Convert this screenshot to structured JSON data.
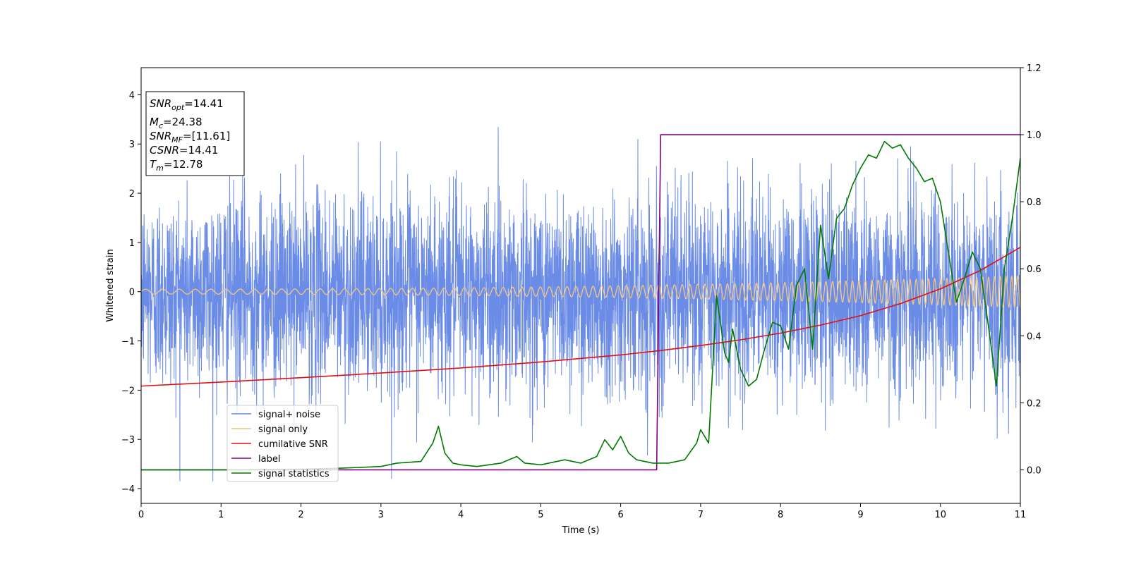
{
  "chart_data": {
    "type": "line",
    "xlabel": "Time (s)",
    "ylabel": "Whitened strain",
    "xlim": [
      0,
      11
    ],
    "ylim": [
      -4.3,
      4.55
    ],
    "ylim_right": [
      -0.1,
      1.2
    ],
    "x_ticks": [
      "0",
      "1",
      "2",
      "3",
      "4",
      "5",
      "6",
      "7",
      "8",
      "9",
      "10",
      "11"
    ],
    "y_ticks_left": [
      "4",
      "3",
      "2",
      "1",
      "0",
      "−1",
      "−2",
      "−3",
      "−4"
    ],
    "y_ticks_right": [
      "1.2",
      "1.0",
      "0.8",
      "0.6",
      "0.4",
      "0.2",
      "0.0"
    ],
    "grid": false,
    "legend_position": "lower-left",
    "annotation_box": {
      "lines": [
        {
          "sym": "SNR",
          "sub": "opt",
          "val": "=14.41"
        },
        {
          "sym": "M",
          "sub": "c",
          "val": "=24.38"
        },
        {
          "sym": "SNR",
          "sub": "MF",
          "val": "=[11.61]"
        },
        {
          "sym": "CSNR",
          "sub": "",
          "val": "=14.41"
        },
        {
          "sym": "T",
          "sub": "m",
          "val": "=12.78"
        }
      ]
    },
    "series": [
      {
        "name": "signal+ noise",
        "axis": "left",
        "color": "#6a8be6",
        "description_values": {
          "noise_sigma": 1.0,
          "range": [
            -3.85,
            4.17
          ]
        }
      },
      {
        "name": "signal only",
        "axis": "left",
        "color": "#f5c77e",
        "chirp": {
          "amplitude_start": 0.05,
          "amplitude_end": 0.32,
          "freq_start": 4.5,
          "freq_end": 14
        }
      },
      {
        "name": "cumilative SNR",
        "axis": "right",
        "color": "#e01010",
        "x": [
          0,
          1,
          2,
          3,
          4,
          5,
          6,
          6.5,
          7,
          7.5,
          8,
          8.5,
          9,
          9.5,
          10,
          10.5,
          11
        ],
        "y": [
          0.25,
          0.262,
          0.275,
          0.289,
          0.304,
          0.322,
          0.343,
          0.356,
          0.371,
          0.388,
          0.408,
          0.432,
          0.46,
          0.496,
          0.54,
          0.595,
          0.664
        ]
      },
      {
        "name": "label",
        "axis": "right",
        "color": "#800080",
        "x": [
          0,
          6.45,
          6.5,
          11
        ],
        "y": [
          0,
          0,
          1,
          1
        ]
      },
      {
        "name": "signal statistics",
        "axis": "right",
        "color": "#007a00",
        "x": [
          0,
          1,
          2,
          2.5,
          3,
          3.2,
          3.5,
          3.65,
          3.72,
          3.8,
          3.9,
          4.0,
          4.2,
          4.5,
          4.7,
          4.8,
          5.0,
          5.3,
          5.5,
          5.7,
          5.8,
          5.9,
          6.0,
          6.1,
          6.2,
          6.4,
          6.6,
          6.8,
          6.95,
          7.0,
          7.1,
          7.2,
          7.3,
          7.35,
          7.4,
          7.5,
          7.6,
          7.7,
          7.8,
          7.9,
          8.0,
          8.1,
          8.2,
          8.3,
          8.4,
          8.5,
          8.6,
          8.7,
          8.8,
          8.9,
          9.0,
          9.1,
          9.2,
          9.3,
          9.4,
          9.5,
          9.6,
          9.7,
          9.8,
          9.9,
          10.0,
          10.1,
          10.2,
          10.3,
          10.4,
          10.5,
          10.6,
          10.7,
          10.8,
          10.9,
          11.0
        ],
        "y": [
          0,
          0,
          0.002,
          0.005,
          0.01,
          0.02,
          0.025,
          0.08,
          0.13,
          0.05,
          0.02,
          0.015,
          0.01,
          0.02,
          0.04,
          0.02,
          0.015,
          0.03,
          0.02,
          0.04,
          0.09,
          0.06,
          0.1,
          0.05,
          0.03,
          0.02,
          0.02,
          0.03,
          0.08,
          0.12,
          0.08,
          0.52,
          0.35,
          0.32,
          0.42,
          0.3,
          0.25,
          0.27,
          0.36,
          0.44,
          0.43,
          0.36,
          0.55,
          0.6,
          0.36,
          0.73,
          0.57,
          0.75,
          0.78,
          0.85,
          0.9,
          0.94,
          0.93,
          0.98,
          0.96,
          0.97,
          0.93,
          0.9,
          0.86,
          0.87,
          0.8,
          0.65,
          0.5,
          0.57,
          0.65,
          0.6,
          0.43,
          0.25,
          0.6,
          0.75,
          0.93
        ]
      }
    ]
  }
}
